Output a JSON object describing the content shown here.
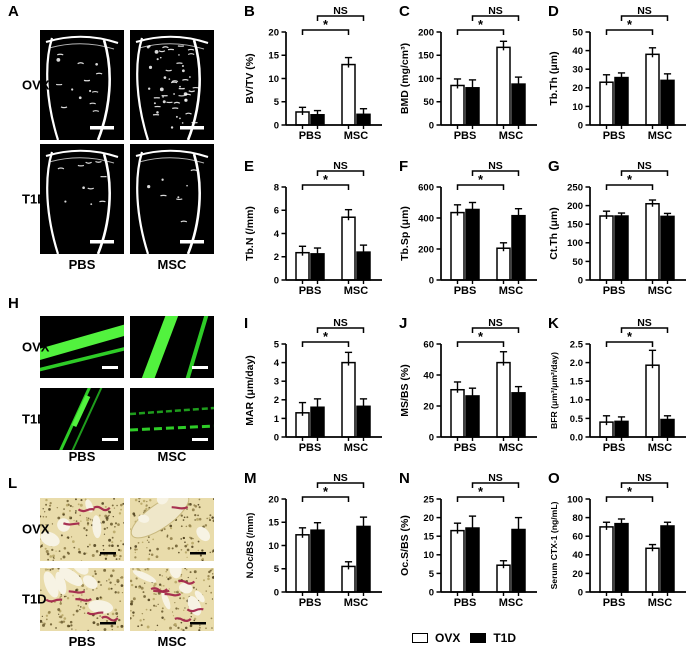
{
  "figure": {
    "panels_image": [
      {
        "id": "A",
        "kind": "microct",
        "row_labels": [
          "OVX",
          "T1D"
        ],
        "col_labels": [
          "PBS",
          "MSC"
        ]
      },
      {
        "id": "H",
        "kind": "fluorescence",
        "row_labels": [
          "OVX",
          "T1D"
        ],
        "col_labels": [
          "PBS",
          "MSC"
        ]
      },
      {
        "id": "L",
        "kind": "histology",
        "row_labels": [
          "OVX",
          "T1D"
        ],
        "col_labels": [
          "PBS",
          "MSC"
        ]
      }
    ],
    "legend": {
      "items": [
        {
          "label": "OVX",
          "fill": "#ffffff"
        },
        {
          "label": "T1D",
          "fill": "#000000"
        }
      ]
    },
    "colors": {
      "axis": "#000000",
      "bar_ovx": "#ffffff",
      "bar_t1d": "#000000",
      "fluor_bright": "#52f23e",
      "fluor_mid": "#2ecc27",
      "fluor_dim": "#1e9c1c",
      "histo_bg": "#e9dcab",
      "histo_stain": "#a3274b"
    }
  },
  "chart_data": [
    {
      "id": "B",
      "type": "bar",
      "ylabel": "BV/TV (%)",
      "ymax": 20,
      "yticks": [
        "0",
        "5",
        "10",
        "15",
        "20"
      ],
      "categories": [
        "PBS",
        "MSC"
      ],
      "series": [
        {
          "name": "OVX",
          "values": [
            2.8,
            13.0
          ],
          "errors": [
            1.0,
            1.5
          ]
        },
        {
          "name": "T1D",
          "values": [
            2.2,
            2.3
          ],
          "errors": [
            0.9,
            1.2
          ]
        }
      ],
      "sig_lower": "*",
      "sig_upper": "NS"
    },
    {
      "id": "C",
      "type": "bar",
      "ylabel": "BMD (mg/cm³)",
      "ymax": 200,
      "yticks": [
        "0",
        "50",
        "100",
        "150",
        "200"
      ],
      "categories": [
        "PBS",
        "MSC"
      ],
      "series": [
        {
          "name": "OVX",
          "values": [
            85,
            167
          ],
          "errors": [
            14,
            13
          ]
        },
        {
          "name": "T1D",
          "values": [
            80,
            88
          ],
          "errors": [
            17,
            15
          ]
        }
      ],
      "sig_lower": "*",
      "sig_upper": "NS"
    },
    {
      "id": "D",
      "type": "bar",
      "ylabel": "Tb.Th (μm)",
      "ymax": 50,
      "yticks": [
        "0",
        "10",
        "20",
        "30",
        "40",
        "50"
      ],
      "categories": [
        "PBS",
        "MSC"
      ],
      "series": [
        {
          "name": "OVX",
          "values": [
            23,
            38
          ],
          "errors": [
            4,
            3.5
          ]
        },
        {
          "name": "T1D",
          "values": [
            25.5,
            24
          ],
          "errors": [
            2.5,
            3.5
          ]
        }
      ],
      "sig_lower": "*",
      "sig_upper": "NS"
    },
    {
      "id": "E",
      "type": "bar",
      "ylabel": "Tb.N (/mm)",
      "ymax": 8,
      "yticks": [
        "0",
        "2",
        "4",
        "6",
        "8"
      ],
      "categories": [
        "PBS",
        "MSC"
      ],
      "series": [
        {
          "name": "OVX",
          "values": [
            2.35,
            5.4
          ],
          "errors": [
            0.55,
            0.65
          ]
        },
        {
          "name": "T1D",
          "values": [
            2.25,
            2.4
          ],
          "errors": [
            0.5,
            0.6
          ]
        }
      ],
      "sig_lower": "*",
      "sig_upper": "NS"
    },
    {
      "id": "F",
      "type": "bar",
      "ylabel": "Tb.Sp (μm)",
      "ymax": 600,
      "yticks": [
        "0",
        "200",
        "400",
        "600"
      ],
      "categories": [
        "PBS",
        "MSC"
      ],
      "series": [
        {
          "name": "OVX",
          "values": [
            435,
            205
          ],
          "errors": [
            50,
            35
          ]
        },
        {
          "name": "T1D",
          "values": [
            455,
            415
          ],
          "errors": [
            45,
            45
          ]
        }
      ],
      "sig_lower": "*",
      "sig_upper": "NS"
    },
    {
      "id": "G",
      "type": "bar",
      "ylabel": "Ct.Th (μm)",
      "ymax": 250,
      "yticks": [
        "0",
        "50",
        "100",
        "150",
        "200",
        "250"
      ],
      "categories": [
        "PBS",
        "MSC"
      ],
      "series": [
        {
          "name": "OVX",
          "values": [
            172,
            205
          ],
          "errors": [
            13,
            10
          ]
        },
        {
          "name": "T1D",
          "values": [
            172,
            171
          ],
          "errors": [
            8,
            8
          ]
        }
      ],
      "sig_lower": "*",
      "sig_upper": "NS"
    },
    {
      "id": "I",
      "type": "bar",
      "ylabel": "MAR (μm/day)",
      "ymax": 5,
      "yticks": [
        "0",
        "1",
        "2",
        "3",
        "4",
        "5"
      ],
      "categories": [
        "PBS",
        "MSC"
      ],
      "series": [
        {
          "name": "OVX",
          "values": [
            1.3,
            4.0
          ],
          "errors": [
            0.55,
            0.55
          ]
        },
        {
          "name": "T1D",
          "values": [
            1.6,
            1.65
          ],
          "errors": [
            0.45,
            0.4
          ]
        }
      ],
      "sig_lower": "*",
      "sig_upper": "NS"
    },
    {
      "id": "J",
      "type": "bar",
      "ylabel": "MS/BS (%)",
      "ymax": 60,
      "yticks": [
        "0",
        "20",
        "40",
        "60"
      ],
      "categories": [
        "PBS",
        "MSC"
      ],
      "series": [
        {
          "name": "OVX",
          "values": [
            30.5,
            48
          ],
          "errors": [
            5,
            7
          ]
        },
        {
          "name": "T1D",
          "values": [
            26.5,
            28.5
          ],
          "errors": [
            5,
            4
          ]
        }
      ],
      "sig_lower": "*",
      "sig_upper": "NS"
    },
    {
      "id": "K",
      "type": "bar",
      "ylabel": "BFR (μm³/μm²/day)",
      "ymax": 2.5,
      "yticks": [
        "0.0",
        "0.5",
        "1.0",
        "1.5",
        "2.0",
        "2.5"
      ],
      "categories": [
        "PBS",
        "MSC"
      ],
      "series": [
        {
          "name": "OVX",
          "values": [
            0.4,
            1.93
          ],
          "errors": [
            0.17,
            0.4
          ]
        },
        {
          "name": "T1D",
          "values": [
            0.42,
            0.47
          ],
          "errors": [
            0.12,
            0.1
          ]
        }
      ],
      "sig_lower": "*",
      "sig_upper": "NS"
    },
    {
      "id": "M",
      "type": "bar",
      "ylabel": "N.Oc/BS (/mm)",
      "ymax": 20,
      "yticks": [
        "0",
        "5",
        "10",
        "15",
        "20"
      ],
      "categories": [
        "PBS",
        "MSC"
      ],
      "series": [
        {
          "name": "OVX",
          "values": [
            12.3,
            5.5
          ],
          "errors": [
            1.5,
            1.0
          ]
        },
        {
          "name": "T1D",
          "values": [
            13.3,
            14.1
          ],
          "errors": [
            1.6,
            2.0
          ]
        }
      ],
      "sig_lower": "*",
      "sig_upper": "NS"
    },
    {
      "id": "N",
      "type": "bar",
      "ylabel": "Oc.S/BS (%)",
      "ymax": 25,
      "yticks": [
        "0",
        "5",
        "10",
        "15",
        "20",
        "25"
      ],
      "categories": [
        "PBS",
        "MSC"
      ],
      "series": [
        {
          "name": "OVX",
          "values": [
            16.5,
            7.2
          ],
          "errors": [
            2.0,
            1.2
          ]
        },
        {
          "name": "T1D",
          "values": [
            17.2,
            16.8
          ],
          "errors": [
            3.2,
            3.2
          ]
        }
      ],
      "sig_lower": "*",
      "sig_upper": "NS"
    },
    {
      "id": "O",
      "type": "bar",
      "ylabel": "Serum CTX-1 (ng/mL)",
      "ymax": 100,
      "yticks": [
        "0",
        "20",
        "40",
        "60",
        "80",
        "100"
      ],
      "categories": [
        "PBS",
        "MSC"
      ],
      "series": [
        {
          "name": "OVX",
          "values": [
            70,
            47
          ],
          "errors": [
            5,
            4
          ]
        },
        {
          "name": "T1D",
          "values": [
            73.5,
            71
          ],
          "errors": [
            5,
            4
          ]
        }
      ],
      "sig_lower": "*",
      "sig_upper": "NS"
    }
  ]
}
